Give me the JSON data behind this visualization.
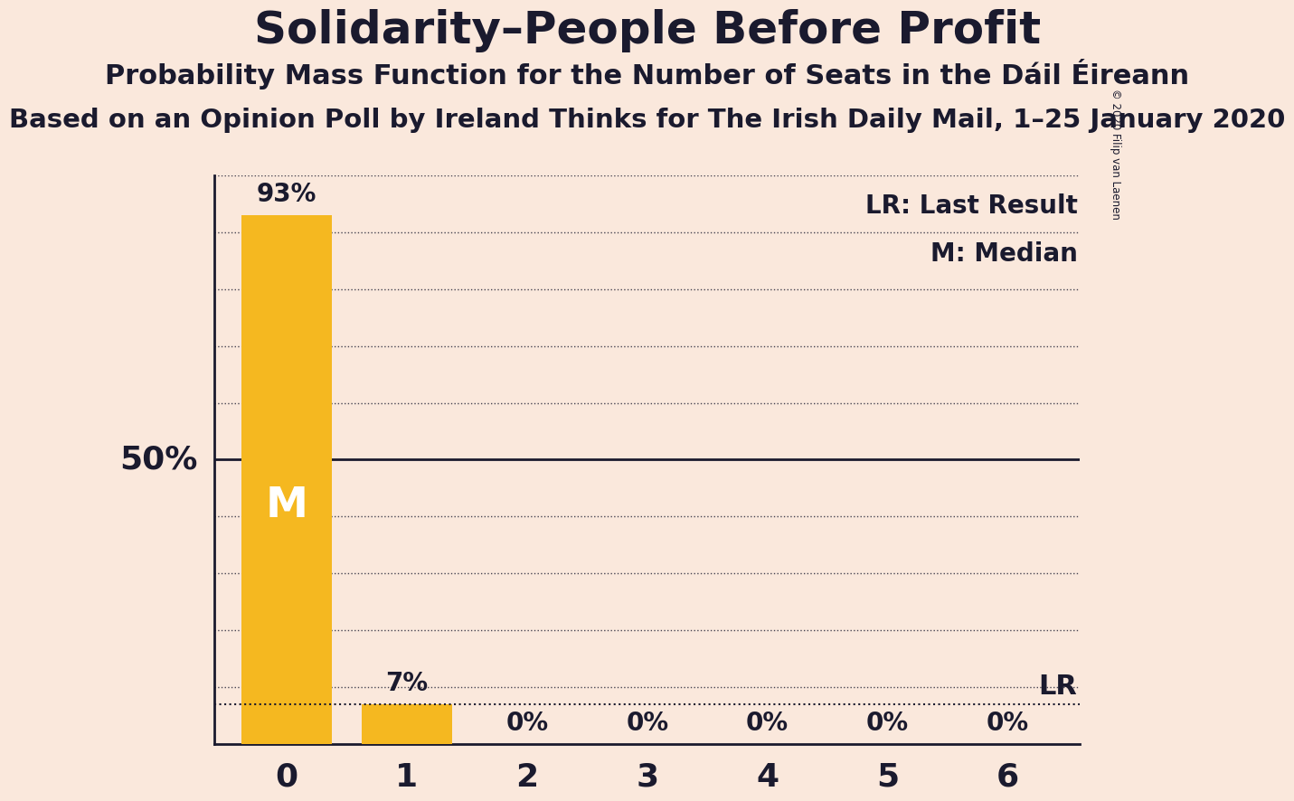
{
  "title": "Solidarity–People Before Profit",
  "subtitle": "Probability Mass Function for the Number of Seats in the Dáil Éireann",
  "source_line": "Based on an Opinion Poll by Ireland Thinks for The Irish Daily Mail, 1–25 January 2020",
  "copyright_text": "© 2020 Filip van Laenen",
  "categories": [
    0,
    1,
    2,
    3,
    4,
    5,
    6
  ],
  "values": [
    93,
    7,
    0,
    0,
    0,
    0,
    0
  ],
  "bar_color": "#F5B820",
  "background_color": "#FAE8DC",
  "text_color": "#1a1a2e",
  "ylabel_50": "50%",
  "median_value": 50,
  "lr_value": 7,
  "legend_lr": "LR: Last Result",
  "legend_m": "M: Median",
  "lr_label": "LR",
  "median_label": "M",
  "ylim": [
    0,
    100
  ],
  "bar_label_fontsize": 20,
  "title_fontsize": 36,
  "subtitle_fontsize": 22,
  "source_fontsize": 21
}
